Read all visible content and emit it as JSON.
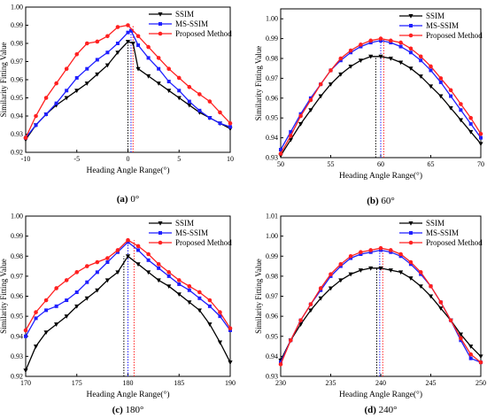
{
  "chart_data": [
    {
      "type": "line",
      "caption_label": "(a)",
      "caption_text": " 0°",
      "xlabel": "Heading Angle Range(°)",
      "ylabel": "Similarity Fitting Value",
      "xlim": [
        -10,
        10
      ],
      "ylim": [
        0.92,
        1.0
      ],
      "xticks": [
        -10,
        -5,
        0,
        5,
        10
      ],
      "yticks": [
        0.92,
        0.93,
        0.94,
        0.95,
        0.96,
        0.97,
        0.98,
        0.99,
        1.0
      ],
      "ytick_labels": [
        "0.92",
        "0.93",
        "0.94",
        "0.95",
        "0.96",
        "0.97",
        "0.98",
        "0.99",
        "1.00"
      ],
      "legend_position": "top-right",
      "vlines": [
        0,
        0.3,
        0.5
      ],
      "series": [
        {
          "name": "SSIM",
          "color": "#000000",
          "marker": "triangle-down",
          "x": [
            -10,
            -9,
            -8,
            -7,
            -6,
            -5,
            -4,
            -3,
            -2,
            -1,
            0,
            0.5,
            1,
            2,
            3,
            4,
            5,
            6,
            7,
            8,
            9,
            10
          ],
          "y": [
            0.927,
            0.935,
            0.941,
            0.946,
            0.95,
            0.954,
            0.958,
            0.963,
            0.968,
            0.975,
            0.981,
            0.98,
            0.966,
            0.962,
            0.958,
            0.954,
            0.95,
            0.946,
            0.942,
            0.939,
            0.936,
            0.933
          ]
        },
        {
          "name": "MS-SSIM",
          "color": "#1f1fff",
          "marker": "square",
          "x": [
            -10,
            -9,
            -8,
            -7,
            -6,
            -5,
            -4,
            -3,
            -2,
            -1,
            0,
            0.3,
            1,
            2,
            3,
            4,
            5,
            6,
            7,
            8,
            9,
            10
          ],
          "y": [
            0.928,
            0.935,
            0.941,
            0.947,
            0.954,
            0.961,
            0.966,
            0.971,
            0.975,
            0.98,
            0.986,
            0.987,
            0.979,
            0.972,
            0.966,
            0.959,
            0.954,
            0.948,
            0.943,
            0.939,
            0.936,
            0.934
          ]
        },
        {
          "name": "Proposed Method",
          "color": "#ff2020",
          "marker": "circle",
          "x": [
            -10,
            -9,
            -8,
            -7,
            -6,
            -5,
            -4,
            -3,
            -2,
            -1,
            0,
            1,
            2,
            3,
            4,
            5,
            6,
            7,
            8,
            9,
            10
          ],
          "y": [
            0.928,
            0.94,
            0.95,
            0.958,
            0.966,
            0.974,
            0.98,
            0.981,
            0.984,
            0.989,
            0.99,
            0.984,
            0.978,
            0.972,
            0.966,
            0.961,
            0.956,
            0.952,
            0.948,
            0.942,
            0.936
          ]
        }
      ]
    },
    {
      "type": "line",
      "caption_label": "(b)",
      "caption_text": " 60°",
      "xlabel": "Heading Angle Range(°)",
      "ylabel": "Similarity Fitting Value",
      "xlim": [
        50,
        70
      ],
      "ylim": [
        0.93,
        1.005
      ],
      "xticks": [
        50,
        55,
        60,
        65,
        70
      ],
      "yticks": [
        0.93,
        0.94,
        0.95,
        0.96,
        0.97,
        0.98,
        0.99,
        1.0
      ],
      "ytick_labels": [
        "0.93",
        "0.94",
        "0.95",
        "0.96",
        "0.97",
        "0.98",
        "0.99",
        "1.00"
      ],
      "legend_position": "top-right",
      "vlines": [
        59.5,
        60,
        60.3
      ],
      "series": [
        {
          "name": "SSIM",
          "color": "#000000",
          "marker": "triangle-down",
          "x": [
            50,
            51,
            52,
            53,
            54,
            55,
            56,
            57,
            58,
            59,
            60,
            61,
            62,
            63,
            64,
            65,
            66,
            67,
            68,
            69,
            70
          ],
          "y": [
            0.931,
            0.939,
            0.947,
            0.954,
            0.961,
            0.967,
            0.972,
            0.976,
            0.979,
            0.981,
            0.981,
            0.98,
            0.978,
            0.975,
            0.971,
            0.966,
            0.961,
            0.955,
            0.949,
            0.943,
            0.937
          ]
        },
        {
          "name": "MS-SSIM",
          "color": "#1f1fff",
          "marker": "square",
          "x": [
            50,
            51,
            52,
            53,
            54,
            55,
            56,
            57,
            58,
            59,
            60,
            61,
            62,
            63,
            64,
            65,
            66,
            67,
            68,
            69,
            70
          ],
          "y": [
            0.934,
            0.943,
            0.952,
            0.96,
            0.967,
            0.974,
            0.979,
            0.983,
            0.986,
            0.988,
            0.989,
            0.988,
            0.986,
            0.983,
            0.979,
            0.974,
            0.968,
            0.961,
            0.954,
            0.947,
            0.94
          ]
        },
        {
          "name": "Proposed Method",
          "color": "#ff2020",
          "marker": "circle",
          "x": [
            50,
            51,
            52,
            53,
            54,
            55,
            56,
            57,
            58,
            59,
            60,
            61,
            62,
            63,
            64,
            65,
            66,
            67,
            68,
            69,
            70
          ],
          "y": [
            0.932,
            0.941,
            0.951,
            0.959,
            0.967,
            0.974,
            0.98,
            0.984,
            0.987,
            0.989,
            0.99,
            0.989,
            0.988,
            0.985,
            0.981,
            0.976,
            0.97,
            0.964,
            0.957,
            0.95,
            0.942
          ]
        }
      ]
    },
    {
      "type": "line",
      "caption_label": "(c)",
      "caption_text": " 180°",
      "xlabel": "Heading Angle Range(°)",
      "ylabel": "Similarity Fitting Value",
      "xlim": [
        170,
        190
      ],
      "ylim": [
        0.92,
        1.0
      ],
      "xticks": [
        170,
        175,
        180,
        185,
        190
      ],
      "yticks": [
        0.92,
        0.93,
        0.94,
        0.95,
        0.96,
        0.97,
        0.98,
        0.99,
        1.0
      ],
      "ytick_labels": [
        "0.92",
        "0.93",
        "0.94",
        "0.95",
        "0.96",
        "0.97",
        "0.98",
        "0.99",
        "1.00"
      ],
      "legend_position": "top-right",
      "vlines": [
        179.6,
        180,
        180.6
      ],
      "series": [
        {
          "name": "SSIM",
          "color": "#000000",
          "marker": "triangle-down",
          "x": [
            170,
            171,
            172,
            173,
            174,
            175,
            176,
            177,
            178,
            179,
            180,
            181,
            182,
            183,
            184,
            185,
            186,
            187,
            188,
            189,
            190
          ],
          "y": [
            0.923,
            0.935,
            0.942,
            0.946,
            0.95,
            0.955,
            0.959,
            0.963,
            0.968,
            0.972,
            0.98,
            0.976,
            0.972,
            0.968,
            0.965,
            0.961,
            0.957,
            0.953,
            0.946,
            0.937,
            0.927
          ]
        },
        {
          "name": "MS-SSIM",
          "color": "#1f1fff",
          "marker": "square",
          "x": [
            170,
            171,
            172,
            173,
            174,
            175,
            176,
            177,
            178,
            179,
            180,
            181,
            182,
            183,
            184,
            185,
            186,
            187,
            188,
            189,
            190
          ],
          "y": [
            0.94,
            0.949,
            0.953,
            0.955,
            0.958,
            0.962,
            0.967,
            0.972,
            0.977,
            0.982,
            0.987,
            0.983,
            0.978,
            0.974,
            0.97,
            0.966,
            0.963,
            0.959,
            0.955,
            0.95,
            0.943
          ]
        },
        {
          "name": "Proposed Method",
          "color": "#ff2020",
          "marker": "circle",
          "x": [
            170,
            171,
            172,
            173,
            174,
            175,
            176,
            177,
            178,
            179,
            180,
            181,
            182,
            183,
            184,
            185,
            186,
            187,
            188,
            189,
            190
          ],
          "y": [
            0.943,
            0.952,
            0.958,
            0.964,
            0.968,
            0.972,
            0.975,
            0.977,
            0.979,
            0.983,
            0.988,
            0.985,
            0.981,
            0.976,
            0.972,
            0.968,
            0.965,
            0.962,
            0.958,
            0.952,
            0.944
          ]
        }
      ]
    },
    {
      "type": "line",
      "caption_label": "(d)",
      "caption_text": " 240°",
      "xlabel": "Heading Angle Range(°)",
      "ylabel": "Similarity Fitting Value",
      "xlim": [
        230,
        250
      ],
      "ylim": [
        0.93,
        1.01
      ],
      "xticks": [
        230,
        235,
        240,
        245,
        250
      ],
      "yticks": [
        0.93,
        0.94,
        0.95,
        0.96,
        0.97,
        0.98,
        0.99,
        1.0,
        1.01
      ],
      "ytick_labels": [
        "0.93",
        "0.94",
        "0.95",
        "0.96",
        "0.97",
        "0.98",
        "0.99",
        "1.00",
        "1.01"
      ],
      "legend_position": "top-right",
      "vlines": [
        239.6,
        239.9,
        240.2
      ],
      "series": [
        {
          "name": "SSIM",
          "color": "#000000",
          "marker": "triangle-down",
          "x": [
            230,
            231,
            232,
            233,
            234,
            235,
            236,
            237,
            238,
            239,
            240,
            241,
            242,
            243,
            244,
            245,
            246,
            247,
            248,
            249,
            250
          ],
          "y": [
            0.938,
            0.948,
            0.956,
            0.963,
            0.969,
            0.974,
            0.978,
            0.981,
            0.983,
            0.984,
            0.984,
            0.983,
            0.982,
            0.979,
            0.975,
            0.97,
            0.964,
            0.958,
            0.951,
            0.945,
            0.94
          ]
        },
        {
          "name": "MS-SSIM",
          "color": "#1f1fff",
          "marker": "square",
          "x": [
            230,
            231,
            232,
            233,
            234,
            235,
            236,
            237,
            238,
            239,
            240,
            241,
            242,
            243,
            244,
            245,
            246,
            247,
            248,
            249,
            250
          ],
          "y": [
            0.937,
            0.948,
            0.958,
            0.966,
            0.973,
            0.98,
            0.985,
            0.989,
            0.991,
            0.992,
            0.993,
            0.992,
            0.99,
            0.986,
            0.981,
            0.975,
            0.967,
            0.958,
            0.948,
            0.939,
            0.937
          ]
        },
        {
          "name": "Proposed Method",
          "color": "#ff2020",
          "marker": "circle",
          "x": [
            230,
            231,
            232,
            233,
            234,
            235,
            236,
            237,
            238,
            239,
            240,
            241,
            242,
            243,
            244,
            245,
            246,
            247,
            248,
            249,
            250
          ],
          "y": [
            0.936,
            0.948,
            0.958,
            0.966,
            0.974,
            0.981,
            0.986,
            0.99,
            0.992,
            0.993,
            0.994,
            0.993,
            0.991,
            0.987,
            0.982,
            0.975,
            0.967,
            0.958,
            0.949,
            0.941,
            0.937
          ]
        }
      ]
    }
  ]
}
